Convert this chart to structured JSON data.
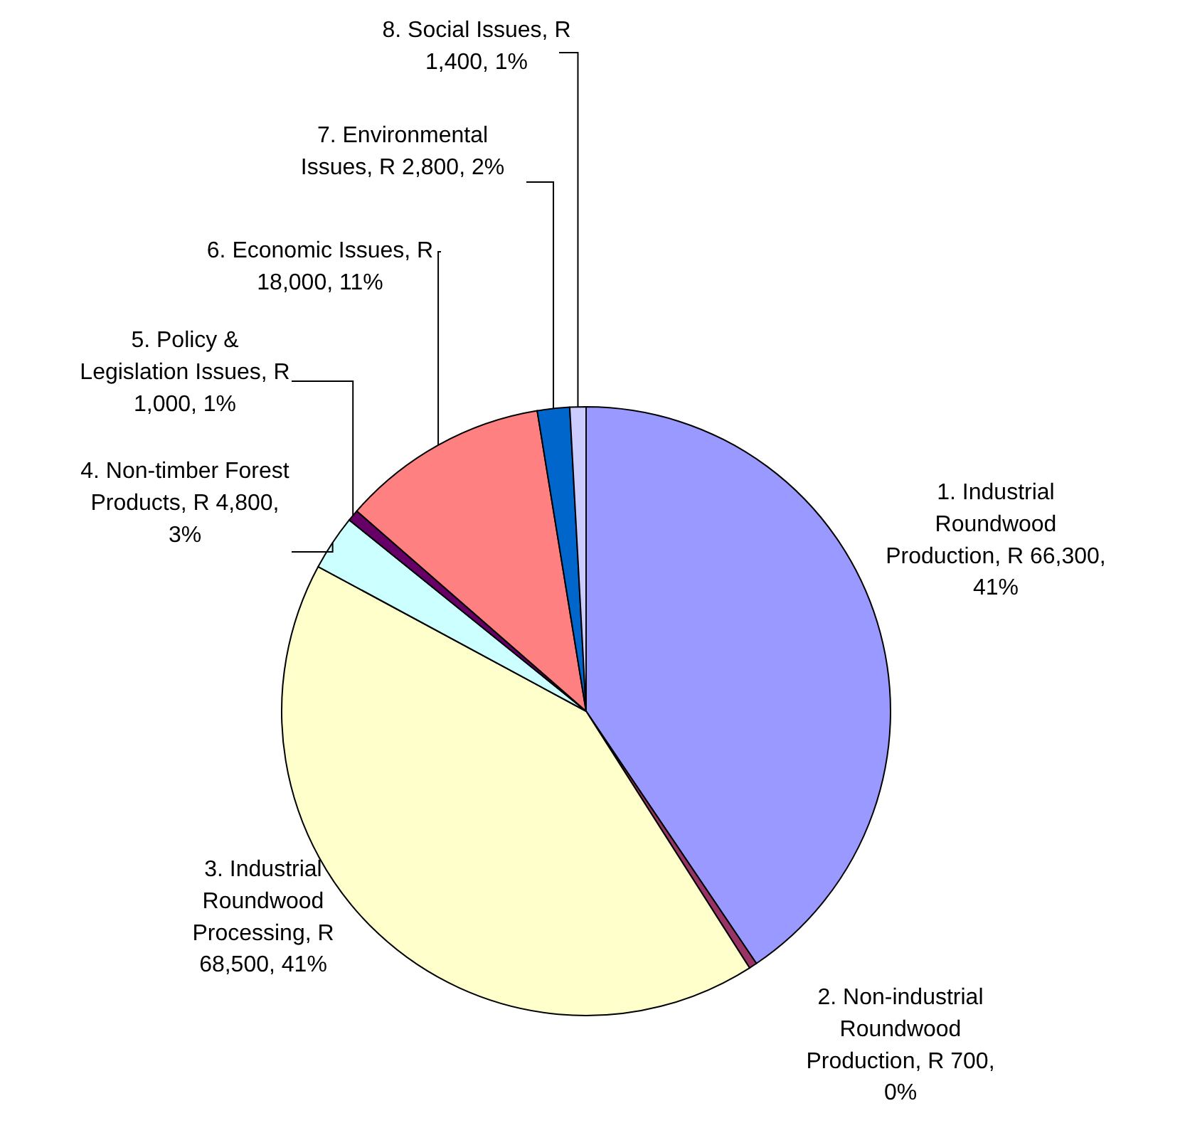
{
  "chart_data": {
    "type": "pie",
    "categories": [
      "1. Industrial Roundwood Production",
      "2. Non-industrial Roundwood Production",
      "3. Industrial Roundwood Processing",
      "4. Non-timber Forest Products",
      "5. Policy & Legislation Issues",
      "6. Economic Issues",
      "7. Environmental Issues",
      "8. Social Issues"
    ],
    "values": [
      66300,
      700,
      68500,
      4800,
      1000,
      18000,
      2800,
      1400
    ],
    "value_labels": [
      "R 66,300, 41%",
      "R 700, 0%",
      "R 68,500, 41%",
      "R 4,800, 3%",
      "R 1,000, 1%",
      "R 18,000, 11%",
      "R 2,800, 2%",
      "R 1,400, 1%"
    ],
    "colors": [
      "#9999ff",
      "#993366",
      "#ffffcc",
      "#ccffff",
      "#660066",
      "#ff8080",
      "#0066cc",
      "#ccccff"
    ]
  }
}
